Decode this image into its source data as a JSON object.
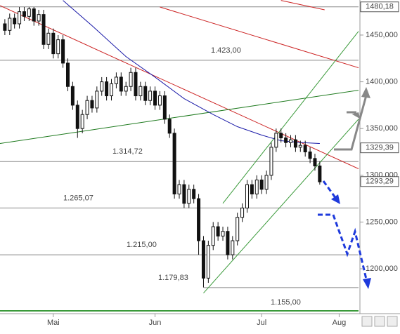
{
  "chart_data": {
    "type": "candlestick",
    "xlim": [
      -1,
      73
    ],
    "ylim": [
      1152,
      1487.5
    ],
    "xticks": [
      {
        "value": 10,
        "label": "Mai"
      },
      {
        "value": 31,
        "label": "Jun"
      },
      {
        "value": 53,
        "label": "Jul"
      },
      {
        "value": 69,
        "label": "Aug"
      }
    ],
    "yticks": [
      {
        "value": 1450,
        "label": "1450,000"
      },
      {
        "value": 1400,
        "label": "1400,000"
      },
      {
        "value": 1350,
        "label": "1350,000"
      },
      {
        "value": 1300,
        "label": "1300,000"
      },
      {
        "value": 1250,
        "label": "1250,000"
      },
      {
        "value": 1200,
        "label": "1200,000"
      }
    ],
    "open": [
      1462,
      1455,
      1468,
      1462,
      1475,
      1470,
      1478,
      1465,
      1472,
      1440,
      1452,
      1430,
      1445,
      1420,
      1395,
      1375,
      1350,
      1365,
      1380,
      1372,
      1390,
      1400,
      1385,
      1398,
      1405,
      1390,
      1395,
      1410,
      1385,
      1395,
      1380,
      1390,
      1375,
      1385,
      1360,
      1345,
      1280,
      1290,
      1270,
      1285,
      1275,
      1230,
      1190,
      1225,
      1245,
      1235,
      1240,
      1215,
      1230,
      1255,
      1265,
      1290,
      1280,
      1295,
      1285,
      1300,
      1330,
      1345,
      1340,
      1335,
      1338,
      1330,
      1332,
      1325,
      1318,
      1310
    ],
    "high": [
      1467,
      1473,
      1473,
      1480,
      1480,
      1480,
      1480,
      1477,
      1477,
      1457,
      1457,
      1450,
      1450,
      1425,
      1400,
      1380,
      1370,
      1385,
      1385,
      1395,
      1405,
      1405,
      1403,
      1410,
      1410,
      1400,
      1415,
      1415,
      1400,
      1400,
      1395,
      1395,
      1390,
      1390,
      1365,
      1350,
      1295,
      1295,
      1290,
      1290,
      1280,
      1235,
      1230,
      1250,
      1250,
      1245,
      1245,
      1235,
      1260,
      1270,
      1295,
      1295,
      1300,
      1300,
      1305,
      1335,
      1350,
      1350,
      1345,
      1343,
      1343,
      1337,
      1337,
      1330,
      1323,
      1315
    ],
    "low": [
      1450,
      1450,
      1457,
      1457,
      1465,
      1465,
      1460,
      1460,
      1435,
      1435,
      1425,
      1425,
      1415,
      1390,
      1370,
      1340,
      1345,
      1360,
      1367,
      1367,
      1385,
      1380,
      1380,
      1393,
      1385,
      1385,
      1390,
      1380,
      1380,
      1375,
      1375,
      1370,
      1370,
      1355,
      1340,
      1275,
      1275,
      1265,
      1265,
      1270,
      1215,
      1180,
      1185,
      1220,
      1230,
      1230,
      1210,
      1210,
      1225,
      1250,
      1260,
      1275,
      1275,
      1280,
      1280,
      1295,
      1325,
      1335,
      1330,
      1330,
      1325,
      1325,
      1320,
      1313,
      1305,
      1290
    ],
    "close": [
      1455,
      1468,
      1462,
      1475,
      1470,
      1478,
      1465,
      1472,
      1440,
      1452,
      1430,
      1445,
      1420,
      1395,
      1375,
      1350,
      1365,
      1380,
      1372,
      1390,
      1400,
      1385,
      1398,
      1405,
      1390,
      1395,
      1410,
      1385,
      1395,
      1380,
      1390,
      1375,
      1385,
      1360,
      1345,
      1280,
      1290,
      1270,
      1285,
      1275,
      1230,
      1190,
      1225,
      1245,
      1235,
      1240,
      1215,
      1230,
      1255,
      1265,
      1290,
      1280,
      1295,
      1285,
      1300,
      1330,
      1345,
      1340,
      1335,
      1338,
      1330,
      1332,
      1325,
      1318,
      1310,
      1293
    ],
    "moving_average": {
      "color": "#1a1aa8",
      "x": [
        12,
        18,
        25,
        31,
        37,
        43,
        48,
        53,
        57,
        61,
        65
      ],
      "values": [
        1487,
        1460,
        1427,
        1405,
        1382,
        1365,
        1352,
        1343,
        1337,
        1335,
        1334
      ]
    },
    "trend_lines": [
      {
        "color": "#cc2222",
        "x": [
          -1,
          73
        ],
        "values": [
          1481.5,
          1307
        ]
      },
      {
        "color": "#cc2222",
        "x": [
          32,
          73
        ],
        "values": [
          1480,
          1415
        ]
      },
      {
        "color": "#cc2222",
        "x": [
          57,
          66
        ],
        "values": [
          1487,
          1477
        ]
      },
      {
        "color": "#1e7a1e",
        "x": [
          -1,
          73
        ],
        "values": [
          1334,
          1391
        ]
      },
      {
        "color": "#3a9a3a",
        "x": [
          41,
          73
        ],
        "values": [
          1174,
          1360
        ]
      },
      {
        "color": "#3a9a3a",
        "x": [
          45,
          73
        ],
        "values": [
          1270,
          1454
        ]
      }
    ],
    "levels": [
      {
        "value": 1480.18,
        "label": null
      },
      {
        "value": 1423,
        "label": "1.423,00"
      },
      {
        "value": 1314.72,
        "label": "1.314,72"
      },
      {
        "value": 1265.07,
        "label": "1.265,07"
      },
      {
        "value": 1215,
        "label": "1.215,00"
      },
      {
        "value": 1179.83,
        "label": "1.179,83"
      },
      {
        "value": 1155,
        "label": "1.155,00"
      }
    ],
    "price_markers": {
      "values": [
        1480.18,
        1329.39,
        1293.29
      ],
      "value_labels": [
        "1480,18",
        "1329,39",
        "1293,29"
      ]
    }
  }
}
